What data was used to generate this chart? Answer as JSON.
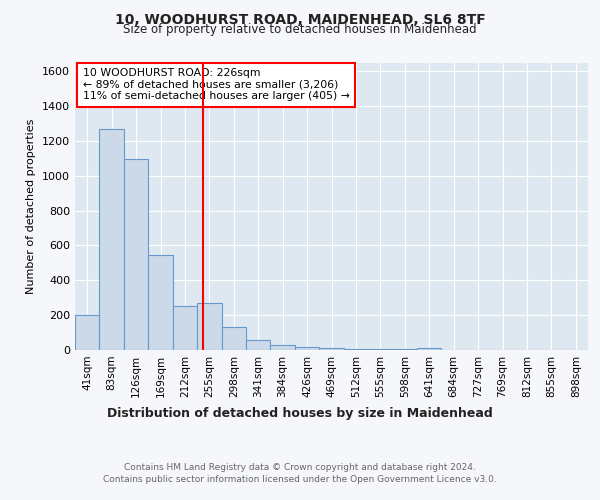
{
  "title1": "10, WOODHURST ROAD, MAIDENHEAD, SL6 8TF",
  "title2": "Size of property relative to detached houses in Maidenhead",
  "xlabel": "Distribution of detached houses by size in Maidenhead",
  "ylabel": "Number of detached properties",
  "categories": [
    "41sqm",
    "83sqm",
    "126sqm",
    "169sqm",
    "212sqm",
    "255sqm",
    "298sqm",
    "341sqm",
    "384sqm",
    "426sqm",
    "469sqm",
    "512sqm",
    "555sqm",
    "598sqm",
    "641sqm",
    "684sqm",
    "727sqm",
    "769sqm",
    "812sqm",
    "855sqm",
    "898sqm"
  ],
  "values": [
    200,
    1270,
    1095,
    545,
    255,
    270,
    130,
    60,
    30,
    15,
    10,
    5,
    5,
    3,
    10,
    2,
    0,
    0,
    0,
    0,
    0
  ],
  "bar_color": "#ccd9e8",
  "bar_edge_color": "#6699cc",
  "red_line_x": 4.72,
  "red_line_label": "10 WOODHURST ROAD: 226sqm",
  "annotation_line2": "← 89% of detached houses are smaller (3,206)",
  "annotation_line3": "11% of semi-detached houses are larger (405) →",
  "ylim": [
    0,
    1650
  ],
  "yticks": [
    0,
    200,
    400,
    600,
    800,
    1000,
    1200,
    1400,
    1600
  ],
  "footer1": "Contains HM Land Registry data © Crown copyright and database right 2024.",
  "footer2": "Contains public sector information licensed under the Open Government Licence v3.0.",
  "bg_color": "#f5f7fa",
  "plot_bg_color": "#dde8f0"
}
